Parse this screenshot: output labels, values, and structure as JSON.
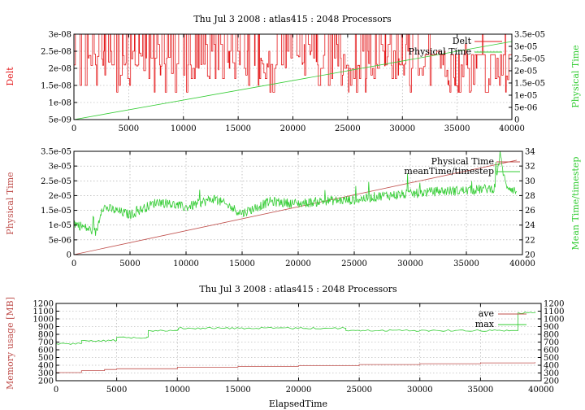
{
  "colors": {
    "red": "#e41a1c",
    "green": "#33cc33",
    "brown": "#c0504d",
    "axis": "#000000"
  },
  "chart_data": [
    {
      "type": "line",
      "title": "Thu Jul 3 2008 : atlas415 : 2048 Processors",
      "xlim": [
        0,
        40000
      ],
      "x_ticks": [
        "0",
        "5000",
        "10000",
        "15000",
        "20000",
        "25000",
        "30000",
        "35000",
        "40000"
      ],
      "ylabel_left": "Delt",
      "ylabel_right": "Physical Time",
      "ylim_left": [
        5e-09,
        3e-08
      ],
      "ylim_right": [
        0,
        3.5e-05
      ],
      "y_ticks_left": [
        "5e-09",
        "1e-08",
        "1.5e-08",
        "2e-08",
        "2.5e-08",
        "3e-08"
      ],
      "y_ticks_right": [
        "0",
        "5e-06",
        "1e-05",
        "1.5e-05",
        "2e-05",
        "2.5e-05",
        "3e-05",
        "3.5e-05"
      ],
      "legend": "top-right",
      "series": [
        {
          "name": "Delt",
          "axis": "left",
          "color": "#e41a1c",
          "style": "noisy-step",
          "x": [
            0,
            5000,
            10000,
            15000,
            20000,
            25000,
            30000,
            32000,
            35000,
            40000
          ],
          "values": [
            2.1e-08,
            2.2e-08,
            2e-08,
            2.1e-08,
            2.2e-08,
            2.1e-08,
            2.3e-08,
            1.8e-08,
            1.6e-08,
            1.7e-08
          ]
        },
        {
          "name": "Physical Time",
          "axis": "right",
          "color": "#33cc33",
          "style": "line",
          "x": [
            0,
            40000
          ],
          "values": [
            0,
            3.2e-05
          ]
        }
      ]
    },
    {
      "type": "line",
      "xlim": [
        0,
        40000
      ],
      "x_ticks": [
        "0",
        "5000",
        "10000",
        "15000",
        "20000",
        "25000",
        "30000",
        "35000",
        "40000"
      ],
      "ylabel_left": "Physical Time",
      "ylabel_right": "Mean Time/timestep",
      "ylim_left": [
        0,
        3.5e-05
      ],
      "ylim_right": [
        20,
        34
      ],
      "y_ticks_left": [
        "0",
        "5e-06",
        "1e-05",
        "1.5e-05",
        "2e-05",
        "2.5e-05",
        "3e-05",
        "3.5e-05"
      ],
      "y_ticks_right": [
        "20",
        "22",
        "24",
        "26",
        "28",
        "30",
        "32",
        "34"
      ],
      "legend": "top-right",
      "series": [
        {
          "name": "Physical Time",
          "axis": "left",
          "color": "#c0504d",
          "style": "line",
          "x": [
            0,
            39500
          ],
          "values": [
            0,
            3.2e-05
          ]
        },
        {
          "name": "meanTime/timestep",
          "axis": "right",
          "color": "#33cc33",
          "style": "noisy-line",
          "x": [
            0,
            2000,
            2500,
            5000,
            7500,
            10000,
            12500,
            15000,
            17500,
            20000,
            22500,
            25000,
            27500,
            30000,
            32500,
            35000,
            37500,
            38000,
            38500,
            39500
          ],
          "values": [
            24.3,
            23.0,
            26.5,
            25.4,
            27.2,
            26.4,
            27.6,
            25.6,
            27.2,
            26.9,
            27.3,
            27.4,
            28.0,
            28.2,
            28.6,
            28.7,
            29.0,
            33.5,
            29.5,
            28.5
          ]
        }
      ]
    },
    {
      "type": "line",
      "title": "Thu Jul 3 2008 : atlas415 : 2048 Processors",
      "xlabel": "ElapsedTime",
      "xlim": [
        0,
        40000
      ],
      "x_ticks": [
        "0",
        "5000",
        "10000",
        "15000",
        "20000",
        "25000",
        "30000",
        "35000",
        "40000"
      ],
      "ylabel_left": "Memory usage [MB]",
      "ylim_left": [
        200,
        1200
      ],
      "ylim_right": [
        200,
        1200
      ],
      "y_ticks_left": [
        "200",
        "300",
        "400",
        "500",
        "600",
        "700",
        "800",
        "900",
        "1000",
        "1100",
        "1200"
      ],
      "y_ticks_right": [
        "200",
        "300",
        "400",
        "500",
        "600",
        "700",
        "800",
        "900",
        "1000",
        "1100",
        "1200"
      ],
      "legend": "top-right",
      "series": [
        {
          "name": "ave",
          "color": "#c0504d",
          "style": "step",
          "x": [
            0,
            2000,
            2100,
            4000,
            5000,
            10000,
            15000,
            20000,
            25000,
            30000,
            35000,
            39500
          ],
          "values": [
            305,
            305,
            330,
            345,
            355,
            375,
            385,
            395,
            410,
            420,
            430,
            440
          ]
        },
        {
          "name": "max",
          "color": "#33cc33",
          "style": "step",
          "x": [
            0,
            2000,
            2100,
            5000,
            7500,
            7600,
            10000,
            10100,
            20000,
            23800,
            23900,
            37500,
            38000,
            38100,
            39500
          ],
          "values": [
            680,
            680,
            720,
            760,
            765,
            850,
            860,
            880,
            880,
            880,
            850,
            850,
            850,
            1080,
            1090
          ]
        }
      ]
    }
  ]
}
